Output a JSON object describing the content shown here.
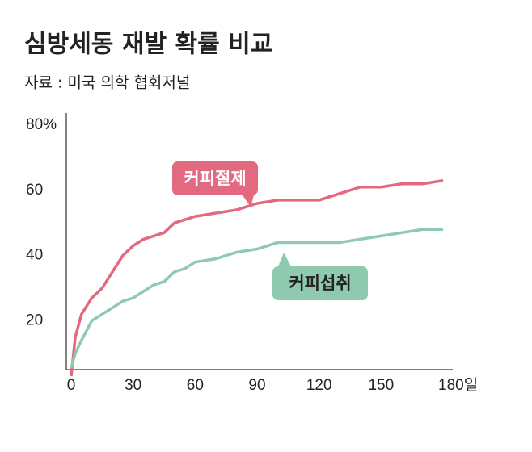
{
  "chart_data": {
    "type": "line",
    "title": "심방세동 재발 확률 비교",
    "subtitle": "자료 : 미국 의학 협회저널",
    "x": [
      0,
      2,
      5,
      10,
      15,
      20,
      25,
      30,
      35,
      40,
      45,
      50,
      55,
      60,
      70,
      80,
      90,
      100,
      120,
      130,
      140,
      150,
      160,
      170,
      180
    ],
    "series": [
      {
        "name": "커피절제",
        "color": "#e2697f",
        "values": [
          3,
          15,
          22,
          27,
          30,
          35,
          40,
          43,
          45,
          46,
          47,
          50,
          51,
          52,
          53,
          54,
          56,
          57,
          57,
          59,
          61,
          61,
          62,
          62,
          63
        ]
      },
      {
        "name": "커피섭취",
        "color": "#8fcab0",
        "values": [
          5.5,
          10,
          14,
          20,
          22,
          24,
          26,
          27,
          29,
          31,
          32,
          35,
          36,
          38,
          39,
          41,
          42,
          44,
          44,
          44,
          45,
          46,
          47,
          48,
          48
        ]
      }
    ],
    "xlim": [
      0,
      180
    ],
    "xticks": [
      0,
      30,
      60,
      90,
      120,
      150,
      {
        "value": 180,
        "label": "180일"
      }
    ],
    "ylim": [
      5,
      80
    ],
    "yticks": [
      20,
      40,
      60,
      {
        "value": 80,
        "label": "80%"
      }
    ],
    "grid": false
  }
}
